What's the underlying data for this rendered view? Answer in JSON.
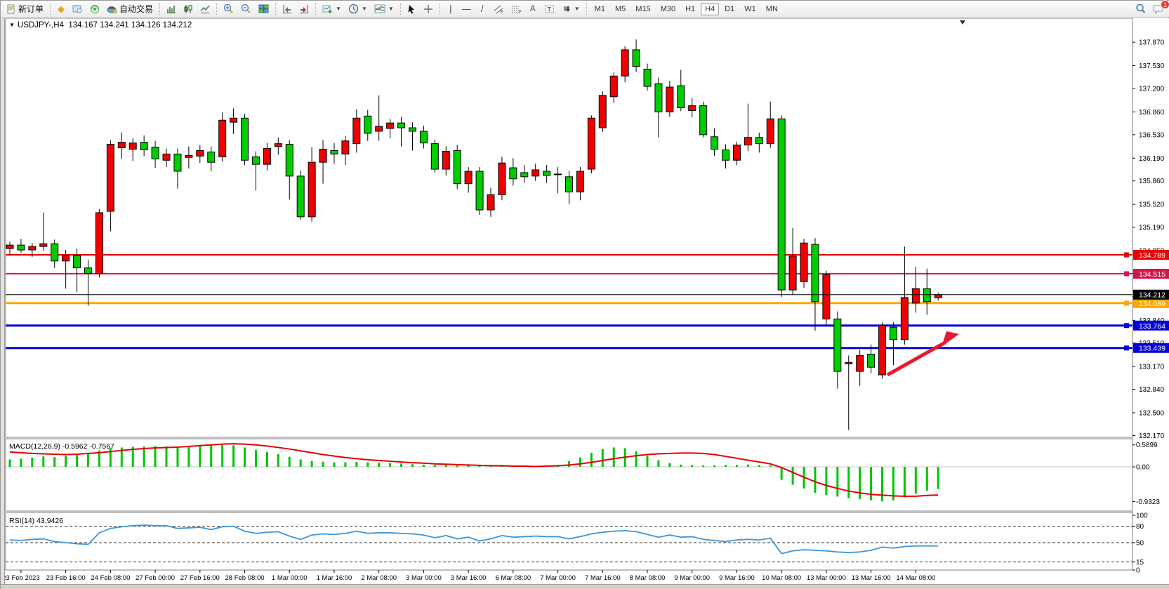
{
  "toolbar": {
    "new_order": "新订单",
    "auto_trading": "自动交易",
    "timeframes": [
      "M1",
      "M5",
      "M15",
      "M30",
      "H1",
      "H4",
      "D1",
      "W1",
      "MN"
    ],
    "active_timeframe": "H4",
    "text_tool": "A",
    "label_tool": "T",
    "notification_badge": "1"
  },
  "chart": {
    "symbol_period": "USDJPY-,H4",
    "ohlc_line": "134.167 134.241 134.126 134.212"
  },
  "chart_data": {
    "type": "candlestick",
    "symbol": "USDJPY-",
    "timeframe": "H4",
    "title": "USDJPY-,H4 134.167 134.241 134.126 134.212",
    "current_ohlc": {
      "open": "134.167",
      "high": "134.241",
      "low": "134.126",
      "close": "134.212"
    },
    "color_convention": "chinese (red = bullish up, green = bearish down)",
    "up_color": "#f00000",
    "down_color": "#00cd00",
    "price_ticks": [
      "137.870",
      "137.530",
      "137.200",
      "136.860",
      "136.530",
      "136.190",
      "135.860",
      "135.520",
      "135.190",
      "134.850",
      "134.520",
      "134.180",
      "133.840",
      "133.510",
      "133.170",
      "132.840",
      "132.500",
      "132.170"
    ],
    "time_labels": [
      "23 Feb 2023",
      "23 Feb 16:00",
      "24 Feb 08:00",
      "27 Feb 00:00",
      "27 Feb 16:00",
      "28 Feb 08:00",
      "1 Mar 00:00",
      "1 Mar 16:00",
      "2 Mar 08:00",
      "3 Mar 00:00",
      "3 Mar 16:00",
      "6 Mar 08:00",
      "7 Mar 00:00",
      "7 Mar 16:00",
      "8 Mar 08:00",
      "9 Mar 00:00",
      "9 Mar 16:00",
      "10 Mar 08:00",
      "13 Mar 00:00",
      "13 Mar 16:00",
      "14 Mar 08:00"
    ],
    "candles": [
      [
        134.88,
        134.98,
        134.78,
        134.93
      ],
      [
        134.93,
        135.02,
        134.82,
        134.86
      ],
      [
        134.86,
        134.96,
        134.76,
        134.91
      ],
      [
        134.91,
        135.4,
        134.85,
        134.95
      ],
      [
        134.95,
        135.01,
        134.6,
        134.7
      ],
      [
        134.7,
        134.86,
        134.3,
        134.78
      ],
      [
        134.78,
        134.88,
        134.25,
        134.6
      ],
      [
        134.6,
        134.72,
        134.05,
        134.52
      ],
      [
        134.52,
        135.45,
        134.46,
        135.4
      ],
      [
        135.42,
        136.45,
        135.13,
        136.39
      ],
      [
        136.34,
        136.56,
        136.18,
        136.42
      ],
      [
        136.32,
        136.48,
        136.15,
        136.41
      ],
      [
        136.42,
        136.52,
        136.22,
        136.31
      ],
      [
        136.35,
        136.44,
        136.05,
        136.18
      ],
      [
        136.16,
        136.33,
        136.06,
        136.25
      ],
      [
        136.25,
        136.33,
        135.75,
        136.0
      ],
      [
        136.2,
        136.36,
        136.04,
        136.23
      ],
      [
        136.22,
        136.38,
        136.12,
        136.3
      ],
      [
        136.28,
        136.36,
        136.0,
        136.13
      ],
      [
        136.21,
        136.85,
        136.14,
        136.74
      ],
      [
        136.71,
        136.91,
        136.54,
        136.77
      ],
      [
        136.77,
        136.83,
        136.09,
        136.16
      ],
      [
        136.21,
        136.29,
        135.72,
        136.1
      ],
      [
        136.1,
        136.41,
        136.01,
        136.33
      ],
      [
        136.36,
        136.49,
        136.24,
        136.4
      ],
      [
        136.39,
        136.45,
        135.59,
        135.93
      ],
      [
        135.93,
        136.01,
        135.3,
        135.34
      ],
      [
        135.34,
        136.35,
        135.27,
        136.13
      ],
      [
        136.13,
        136.45,
        135.82,
        136.32
      ],
      [
        136.3,
        136.41,
        136.11,
        136.25
      ],
      [
        136.25,
        136.51,
        136.09,
        136.44
      ],
      [
        136.4,
        136.9,
        136.27,
        136.77
      ],
      [
        136.8,
        136.89,
        136.44,
        136.55
      ],
      [
        136.58,
        137.1,
        136.44,
        136.65
      ],
      [
        136.62,
        136.76,
        136.48,
        136.7
      ],
      [
        136.7,
        136.79,
        136.36,
        136.63
      ],
      [
        136.63,
        136.71,
        136.3,
        136.58
      ],
      [
        136.58,
        136.66,
        136.33,
        136.41
      ],
      [
        136.4,
        136.46,
        135.98,
        136.03
      ],
      [
        136.03,
        136.36,
        135.94,
        136.29
      ],
      [
        136.3,
        136.38,
        135.74,
        135.82
      ],
      [
        135.82,
        136.06,
        135.69,
        136.0
      ],
      [
        136.0,
        136.06,
        135.37,
        135.44
      ],
      [
        135.44,
        135.76,
        135.34,
        135.66
      ],
      [
        135.66,
        136.21,
        135.58,
        136.12
      ],
      [
        136.05,
        136.19,
        135.79,
        135.89
      ],
      [
        135.98,
        136.09,
        135.83,
        135.92
      ],
      [
        135.93,
        136.11,
        135.86,
        136.02
      ],
      [
        136.0,
        136.09,
        135.83,
        135.94
      ],
      [
        135.95,
        136.06,
        135.68,
        135.96
      ],
      [
        135.92,
        136.01,
        135.52,
        135.7
      ],
      [
        135.7,
        136.06,
        135.58,
        136.0
      ],
      [
        136.03,
        136.81,
        135.97,
        136.77
      ],
      [
        136.63,
        137.16,
        136.57,
        137.1
      ],
      [
        137.08,
        137.43,
        136.99,
        137.38
      ],
      [
        137.38,
        137.81,
        137.29,
        137.76
      ],
      [
        137.76,
        137.91,
        137.44,
        137.52
      ],
      [
        137.48,
        137.56,
        137.17,
        137.23
      ],
      [
        137.27,
        137.36,
        136.49,
        136.86
      ],
      [
        136.86,
        137.31,
        136.79,
        137.22
      ],
      [
        137.24,
        137.47,
        136.87,
        136.92
      ],
      [
        136.88,
        137.06,
        136.78,
        136.95
      ],
      [
        136.95,
        137.01,
        136.49,
        136.53
      ],
      [
        136.5,
        136.62,
        136.22,
        136.32
      ],
      [
        136.31,
        136.39,
        136.04,
        136.16
      ],
      [
        136.16,
        136.43,
        136.09,
        136.38
      ],
      [
        136.38,
        136.98,
        136.29,
        136.49
      ],
      [
        136.49,
        136.56,
        136.27,
        136.4
      ],
      [
        136.4,
        137.01,
        136.34,
        136.76
      ],
      [
        136.76,
        136.81,
        134.18,
        134.28
      ],
      [
        134.28,
        135.18,
        134.21,
        134.77
      ],
      [
        134.4,
        135.02,
        134.31,
        134.96
      ],
      [
        134.94,
        135.03,
        133.69,
        134.11
      ],
      [
        133.86,
        134.56,
        133.78,
        134.5
      ],
      [
        133.86,
        133.97,
        132.85,
        133.1
      ],
      [
        133.21,
        133.33,
        132.25,
        133.23
      ],
      [
        133.1,
        133.41,
        132.89,
        133.33
      ],
      [
        133.35,
        133.49,
        133.07,
        133.16
      ],
      [
        133.05,
        133.81,
        132.99,
        133.77
      ],
      [
        133.74,
        133.81,
        133.19,
        133.56
      ],
      [
        133.56,
        134.91,
        133.49,
        134.17
      ],
      [
        134.09,
        134.62,
        133.95,
        134.3
      ],
      [
        134.3,
        134.59,
        133.92,
        134.11
      ],
      [
        134.167,
        134.241,
        134.126,
        134.212
      ]
    ],
    "levels": [
      {
        "price": "134.789",
        "value": 134.789,
        "color": "#e60000",
        "width": 2
      },
      {
        "price": "134.515",
        "value": 134.515,
        "color": "#d2174d",
        "width": 2
      },
      {
        "price": "134.089",
        "value": 134.089,
        "color": "#ffa500",
        "width": 3
      },
      {
        "price": "133.764",
        "value": 133.764,
        "color": "#0000e0",
        "width": 3
      },
      {
        "price": "133.439",
        "value": 133.439,
        "color": "#0000e0",
        "width": 3
      }
    ],
    "current_price": {
      "price": "134.212",
      "value": 134.212,
      "color": "#000000"
    },
    "annotation_arrow": {
      "color": "#e8192c",
      "from_price": 133.05,
      "to_price": 133.62,
      "note": "red up arrow drawn over 13-14 Mar recovery"
    },
    "indicators": {
      "macd": {
        "label": "MACD(12,26,9) -0.5962 -0.7567",
        "params": "12,26,9",
        "main_value": -0.5962,
        "signal_value": -0.7567,
        "axis_labels": [
          "0.5899",
          "0.00",
          "-0.9323"
        ],
        "axis_values": [
          0.5899,
          0.0,
          -0.9323
        ],
        "histogram_color": "#00c400",
        "signal_color": "#e60000",
        "histogram": [
          0.2,
          0.22,
          0.25,
          0.28,
          0.26,
          0.3,
          0.33,
          0.38,
          0.44,
          0.5,
          0.52,
          0.54,
          0.55,
          0.56,
          0.55,
          0.54,
          0.56,
          0.58,
          0.59,
          0.59,
          0.58,
          0.52,
          0.46,
          0.4,
          0.34,
          0.27,
          0.2,
          0.16,
          0.14,
          0.12,
          0.12,
          0.13,
          0.12,
          0.11,
          0.1,
          0.09,
          0.07,
          0.06,
          0.05,
          0.05,
          0.04,
          0.04,
          0.03,
          0.03,
          0.04,
          0.04,
          0.04,
          0.03,
          0.04,
          0.05,
          0.15,
          0.25,
          0.38,
          0.48,
          0.52,
          0.5,
          0.42,
          0.3,
          0.18,
          0.1,
          0.06,
          0.05,
          0.04,
          0.04,
          0.05,
          0.05,
          0.06,
          0.05,
          0.04,
          -0.35,
          -0.48,
          -0.58,
          -0.7,
          -0.76,
          -0.8,
          -0.84,
          -0.87,
          -0.9,
          -0.93,
          -0.9,
          -0.82,
          -0.72,
          -0.64,
          -0.5962
        ],
        "signal_series": [
          0.4,
          0.38,
          0.36,
          0.35,
          0.34,
          0.33,
          0.34,
          0.36,
          0.38,
          0.41,
          0.44,
          0.47,
          0.49,
          0.51,
          0.52,
          0.53,
          0.55,
          0.57,
          0.59,
          0.61,
          0.62,
          0.61,
          0.59,
          0.56,
          0.52,
          0.48,
          0.43,
          0.38,
          0.33,
          0.29,
          0.25,
          0.22,
          0.19,
          0.17,
          0.15,
          0.13,
          0.11,
          0.1,
          0.08,
          0.07,
          0.06,
          0.05,
          0.04,
          0.03,
          0.03,
          0.02,
          0.02,
          0.01,
          0.02,
          0.03,
          0.05,
          0.08,
          0.12,
          0.17,
          0.22,
          0.26,
          0.3,
          0.33,
          0.35,
          0.36,
          0.37,
          0.37,
          0.36,
          0.33,
          0.28,
          0.23,
          0.18,
          0.13,
          0.08,
          -0.02,
          -0.15,
          -0.28,
          -0.4,
          -0.5,
          -0.58,
          -0.65,
          -0.7,
          -0.74,
          -0.76,
          -0.78,
          -0.79,
          -0.79,
          -0.77,
          -0.7567
        ]
      },
      "rsi": {
        "label": "RSI(14) 43.9426",
        "period": "14",
        "value": 43.9426,
        "line_color": "#3a96dd",
        "axis_labels": [
          "100",
          "80",
          "50",
          "15",
          "0"
        ],
        "axis_values": [
          100,
          80,
          50,
          15,
          0
        ],
        "guide_levels": [
          80,
          50,
          15
        ],
        "series": [
          55,
          54,
          56,
          57,
          52,
          50,
          48,
          47,
          68,
          76,
          79,
          81,
          82,
          81,
          81,
          76,
          77,
          78,
          74,
          79,
          80,
          71,
          67,
          69,
          70,
          62,
          56,
          64,
          66,
          65,
          67,
          71,
          67,
          68,
          68,
          67,
          66,
          64,
          59,
          63,
          57,
          60,
          53,
          57,
          63,
          60,
          61,
          62,
          61,
          61,
          57,
          61,
          66,
          69,
          71,
          72,
          70,
          65,
          60,
          64,
          60,
          61,
          56,
          54,
          52,
          55,
          56,
          55,
          58,
          30,
          35,
          37,
          36,
          35,
          33,
          32,
          33,
          36,
          42,
          40,
          43,
          44,
          44,
          43.94
        ]
      }
    }
  }
}
